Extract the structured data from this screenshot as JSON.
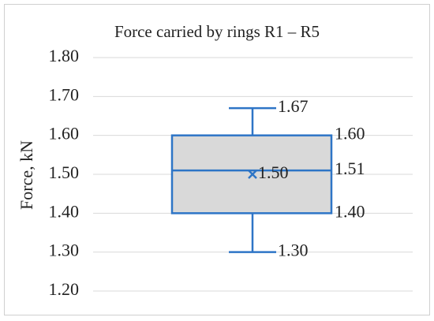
{
  "chart_data": {
    "type": "box",
    "title": "Force carried by rings R1 – R5",
    "y_label": "Force, kN",
    "ylim": [
      1.2,
      1.8
    ],
    "yticks": [
      {
        "value": 1.2,
        "label": "1.20"
      },
      {
        "value": 1.3,
        "label": "1.30"
      },
      {
        "value": 1.4,
        "label": "1.40"
      },
      {
        "value": 1.5,
        "label": "1.50"
      },
      {
        "value": 1.6,
        "label": "1.60"
      },
      {
        "value": 1.7,
        "label": "1.70"
      },
      {
        "value": 1.8,
        "label": "1.80"
      }
    ],
    "grid": true,
    "color": "#2e75c6",
    "box_fill": "#d9d9d9",
    "stats": {
      "min": 1.3,
      "q1": 1.4,
      "median": 1.51,
      "q3": 1.6,
      "max": 1.67,
      "mean": 1.5
    },
    "value_labels": {
      "min": "1.30",
      "q1": "1.40",
      "median": "1.51",
      "q3": "1.60",
      "max": "1.67",
      "mean": "1.50"
    }
  }
}
